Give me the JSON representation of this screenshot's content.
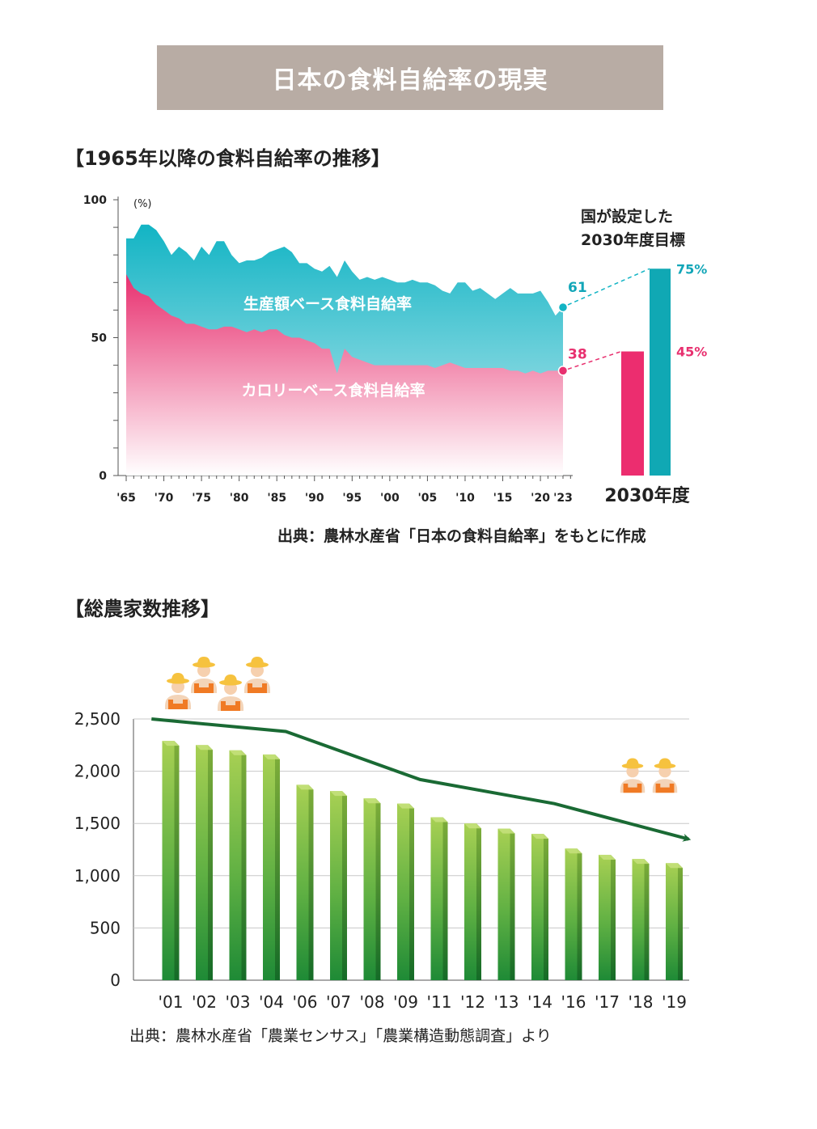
{
  "page": {
    "banner_title": "日本の食料自給率の現実",
    "chart1_heading": "【1965年以降の食料自給率の推移】",
    "chart1_source": "出典：農林水産省「日本の食料自給率」をもとに作成",
    "chart2_heading": "【総農家数推移】",
    "chart2_source": "出典：農林水産省「農業センサス」「農業構造動態調査」より"
  },
  "colors": {
    "banner": "#b8aca4",
    "production": "#12b4c4",
    "production_light": "#bde9ef",
    "calorie": "#e8306f",
    "calorie_light": "#ffffff",
    "target_production": "#10a8b4",
    "target_calorie": "#ec2d6f",
    "bar_top": "#a8d053",
    "bar_bottom": "#1e8a36",
    "trend_line": "#1a6a34",
    "farmer_shirt": "#f07a24",
    "farmer_hat": "#f6c23e"
  },
  "chart_data": [
    {
      "type": "area",
      "unit_label": "(%)",
      "ylim": [
        0,
        100
      ],
      "y_ticks": [
        "100",
        "50",
        "0"
      ],
      "x_tick_labels": [
        "'65",
        "'70",
        "'75",
        "'80",
        "'85",
        "'90",
        "'95",
        "'00",
        "'05",
        "'10",
        "'15",
        "'20",
        "'23"
      ],
      "x_tick_years": [
        1965,
        1970,
        1975,
        1980,
        1985,
        1990,
        1995,
        2000,
        2005,
        2010,
        2015,
        2020,
        2023
      ],
      "x": [
        1965,
        1966,
        1967,
        1968,
        1969,
        1970,
        1971,
        1972,
        1973,
        1974,
        1975,
        1976,
        1977,
        1978,
        1979,
        1980,
        1981,
        1982,
        1983,
        1984,
        1985,
        1986,
        1987,
        1988,
        1989,
        1990,
        1991,
        1992,
        1993,
        1994,
        1995,
        1996,
        1997,
        1998,
        1999,
        2000,
        2001,
        2002,
        2003,
        2004,
        2005,
        2006,
        2007,
        2008,
        2009,
        2010,
        2011,
        2012,
        2013,
        2014,
        2015,
        2016,
        2017,
        2018,
        2019,
        2020,
        2021,
        2022,
        2023
      ],
      "series": [
        {
          "name": "生産額ベース食料自給率",
          "values": [
            86,
            86,
            91,
            91,
            89,
            85,
            80,
            83,
            81,
            78,
            83,
            80,
            85,
            85,
            80,
            77,
            78,
            78,
            79,
            81,
            82,
            83,
            81,
            77,
            77,
            75,
            74,
            76,
            72,
            78,
            74,
            71,
            72,
            71,
            72,
            71,
            70,
            70,
            71,
            70,
            70,
            69,
            67,
            66,
            70,
            70,
            67,
            68,
            66,
            64,
            66,
            68,
            66,
            66,
            66,
            67,
            63,
            58,
            61
          ],
          "end_label": "61"
        },
        {
          "name": "カロリーベース食料自給率",
          "values": [
            73,
            68,
            66,
            65,
            62,
            60,
            58,
            57,
            55,
            55,
            54,
            53,
            53,
            54,
            54,
            53,
            52,
            53,
            52,
            53,
            53,
            51,
            50,
            50,
            49,
            48,
            46,
            46,
            37,
            46,
            43,
            42,
            41,
            40,
            40,
            40,
            40,
            40,
            40,
            40,
            40,
            39,
            40,
            41,
            40,
            39,
            39,
            39,
            39,
            39,
            39,
            38,
            38,
            37,
            38,
            37,
            38,
            38,
            38
          ],
          "end_label": "38"
        }
      ],
      "target": {
        "caption_line1": "国が設定した",
        "caption_line2": "2030年度目標",
        "year_label": "2030年度",
        "production_value": 75,
        "production_label": "75%",
        "calorie_value": 45,
        "calorie_label": "45%"
      }
    },
    {
      "type": "bar",
      "categories": [
        "'01",
        "'02",
        "'03",
        "'04",
        "'06",
        "'07",
        "'08",
        "'09",
        "'11",
        "'12",
        "'13",
        "'14",
        "'16",
        "'17",
        "'18",
        "'19"
      ],
      "values": [
        2290,
        2250,
        2200,
        2160,
        1870,
        1810,
        1740,
        1690,
        1560,
        1500,
        1450,
        1400,
        1260,
        1200,
        1160,
        1120
      ],
      "ylim": [
        0,
        2500
      ],
      "y_ticks": [
        "0",
        "500",
        "1,000",
        "1,500",
        "2,000",
        "2,500"
      ],
      "y_tick_values": [
        0,
        500,
        1000,
        1500,
        2000,
        2500
      ],
      "trend": {
        "x_index": [
          -0.5,
          3.5,
          7.5,
          11.5,
          15.5
        ],
        "values": [
          2500,
          2380,
          1920,
          1690,
          1350
        ]
      }
    }
  ]
}
